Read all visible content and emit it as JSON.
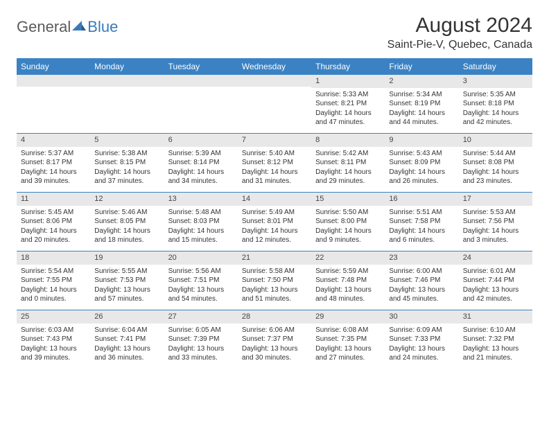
{
  "logo": {
    "general": "General",
    "blue": "Blue"
  },
  "title": "August 2024",
  "location": "Saint-Pie-V, Quebec, Canada",
  "colors": {
    "header_bg": "#3a82c4",
    "header_text": "#ffffff",
    "daynum_bg": "#e8e8e8",
    "text": "#333333",
    "row_divider": "#3a82c4",
    "logo_general": "#5a5a5a",
    "logo_blue": "#3a7ab8"
  },
  "day_names": [
    "Sunday",
    "Monday",
    "Tuesday",
    "Wednesday",
    "Thursday",
    "Friday",
    "Saturday"
  ],
  "weeks": [
    [
      {
        "n": "",
        "sr": "",
        "ss": "",
        "dl": ""
      },
      {
        "n": "",
        "sr": "",
        "ss": "",
        "dl": ""
      },
      {
        "n": "",
        "sr": "",
        "ss": "",
        "dl": ""
      },
      {
        "n": "",
        "sr": "",
        "ss": "",
        "dl": ""
      },
      {
        "n": "1",
        "sr": "Sunrise: 5:33 AM",
        "ss": "Sunset: 8:21 PM",
        "dl": "Daylight: 14 hours and 47 minutes."
      },
      {
        "n": "2",
        "sr": "Sunrise: 5:34 AM",
        "ss": "Sunset: 8:19 PM",
        "dl": "Daylight: 14 hours and 44 minutes."
      },
      {
        "n": "3",
        "sr": "Sunrise: 5:35 AM",
        "ss": "Sunset: 8:18 PM",
        "dl": "Daylight: 14 hours and 42 minutes."
      }
    ],
    [
      {
        "n": "4",
        "sr": "Sunrise: 5:37 AM",
        "ss": "Sunset: 8:17 PM",
        "dl": "Daylight: 14 hours and 39 minutes."
      },
      {
        "n": "5",
        "sr": "Sunrise: 5:38 AM",
        "ss": "Sunset: 8:15 PM",
        "dl": "Daylight: 14 hours and 37 minutes."
      },
      {
        "n": "6",
        "sr": "Sunrise: 5:39 AM",
        "ss": "Sunset: 8:14 PM",
        "dl": "Daylight: 14 hours and 34 minutes."
      },
      {
        "n": "7",
        "sr": "Sunrise: 5:40 AM",
        "ss": "Sunset: 8:12 PM",
        "dl": "Daylight: 14 hours and 31 minutes."
      },
      {
        "n": "8",
        "sr": "Sunrise: 5:42 AM",
        "ss": "Sunset: 8:11 PM",
        "dl": "Daylight: 14 hours and 29 minutes."
      },
      {
        "n": "9",
        "sr": "Sunrise: 5:43 AM",
        "ss": "Sunset: 8:09 PM",
        "dl": "Daylight: 14 hours and 26 minutes."
      },
      {
        "n": "10",
        "sr": "Sunrise: 5:44 AM",
        "ss": "Sunset: 8:08 PM",
        "dl": "Daylight: 14 hours and 23 minutes."
      }
    ],
    [
      {
        "n": "11",
        "sr": "Sunrise: 5:45 AM",
        "ss": "Sunset: 8:06 PM",
        "dl": "Daylight: 14 hours and 20 minutes."
      },
      {
        "n": "12",
        "sr": "Sunrise: 5:46 AM",
        "ss": "Sunset: 8:05 PM",
        "dl": "Daylight: 14 hours and 18 minutes."
      },
      {
        "n": "13",
        "sr": "Sunrise: 5:48 AM",
        "ss": "Sunset: 8:03 PM",
        "dl": "Daylight: 14 hours and 15 minutes."
      },
      {
        "n": "14",
        "sr": "Sunrise: 5:49 AM",
        "ss": "Sunset: 8:01 PM",
        "dl": "Daylight: 14 hours and 12 minutes."
      },
      {
        "n": "15",
        "sr": "Sunrise: 5:50 AM",
        "ss": "Sunset: 8:00 PM",
        "dl": "Daylight: 14 hours and 9 minutes."
      },
      {
        "n": "16",
        "sr": "Sunrise: 5:51 AM",
        "ss": "Sunset: 7:58 PM",
        "dl": "Daylight: 14 hours and 6 minutes."
      },
      {
        "n": "17",
        "sr": "Sunrise: 5:53 AM",
        "ss": "Sunset: 7:56 PM",
        "dl": "Daylight: 14 hours and 3 minutes."
      }
    ],
    [
      {
        "n": "18",
        "sr": "Sunrise: 5:54 AM",
        "ss": "Sunset: 7:55 PM",
        "dl": "Daylight: 14 hours and 0 minutes."
      },
      {
        "n": "19",
        "sr": "Sunrise: 5:55 AM",
        "ss": "Sunset: 7:53 PM",
        "dl": "Daylight: 13 hours and 57 minutes."
      },
      {
        "n": "20",
        "sr": "Sunrise: 5:56 AM",
        "ss": "Sunset: 7:51 PM",
        "dl": "Daylight: 13 hours and 54 minutes."
      },
      {
        "n": "21",
        "sr": "Sunrise: 5:58 AM",
        "ss": "Sunset: 7:50 PM",
        "dl": "Daylight: 13 hours and 51 minutes."
      },
      {
        "n": "22",
        "sr": "Sunrise: 5:59 AM",
        "ss": "Sunset: 7:48 PM",
        "dl": "Daylight: 13 hours and 48 minutes."
      },
      {
        "n": "23",
        "sr": "Sunrise: 6:00 AM",
        "ss": "Sunset: 7:46 PM",
        "dl": "Daylight: 13 hours and 45 minutes."
      },
      {
        "n": "24",
        "sr": "Sunrise: 6:01 AM",
        "ss": "Sunset: 7:44 PM",
        "dl": "Daylight: 13 hours and 42 minutes."
      }
    ],
    [
      {
        "n": "25",
        "sr": "Sunrise: 6:03 AM",
        "ss": "Sunset: 7:43 PM",
        "dl": "Daylight: 13 hours and 39 minutes."
      },
      {
        "n": "26",
        "sr": "Sunrise: 6:04 AM",
        "ss": "Sunset: 7:41 PM",
        "dl": "Daylight: 13 hours and 36 minutes."
      },
      {
        "n": "27",
        "sr": "Sunrise: 6:05 AM",
        "ss": "Sunset: 7:39 PM",
        "dl": "Daylight: 13 hours and 33 minutes."
      },
      {
        "n": "28",
        "sr": "Sunrise: 6:06 AM",
        "ss": "Sunset: 7:37 PM",
        "dl": "Daylight: 13 hours and 30 minutes."
      },
      {
        "n": "29",
        "sr": "Sunrise: 6:08 AM",
        "ss": "Sunset: 7:35 PM",
        "dl": "Daylight: 13 hours and 27 minutes."
      },
      {
        "n": "30",
        "sr": "Sunrise: 6:09 AM",
        "ss": "Sunset: 7:33 PM",
        "dl": "Daylight: 13 hours and 24 minutes."
      },
      {
        "n": "31",
        "sr": "Sunrise: 6:10 AM",
        "ss": "Sunset: 7:32 PM",
        "dl": "Daylight: 13 hours and 21 minutes."
      }
    ]
  ]
}
